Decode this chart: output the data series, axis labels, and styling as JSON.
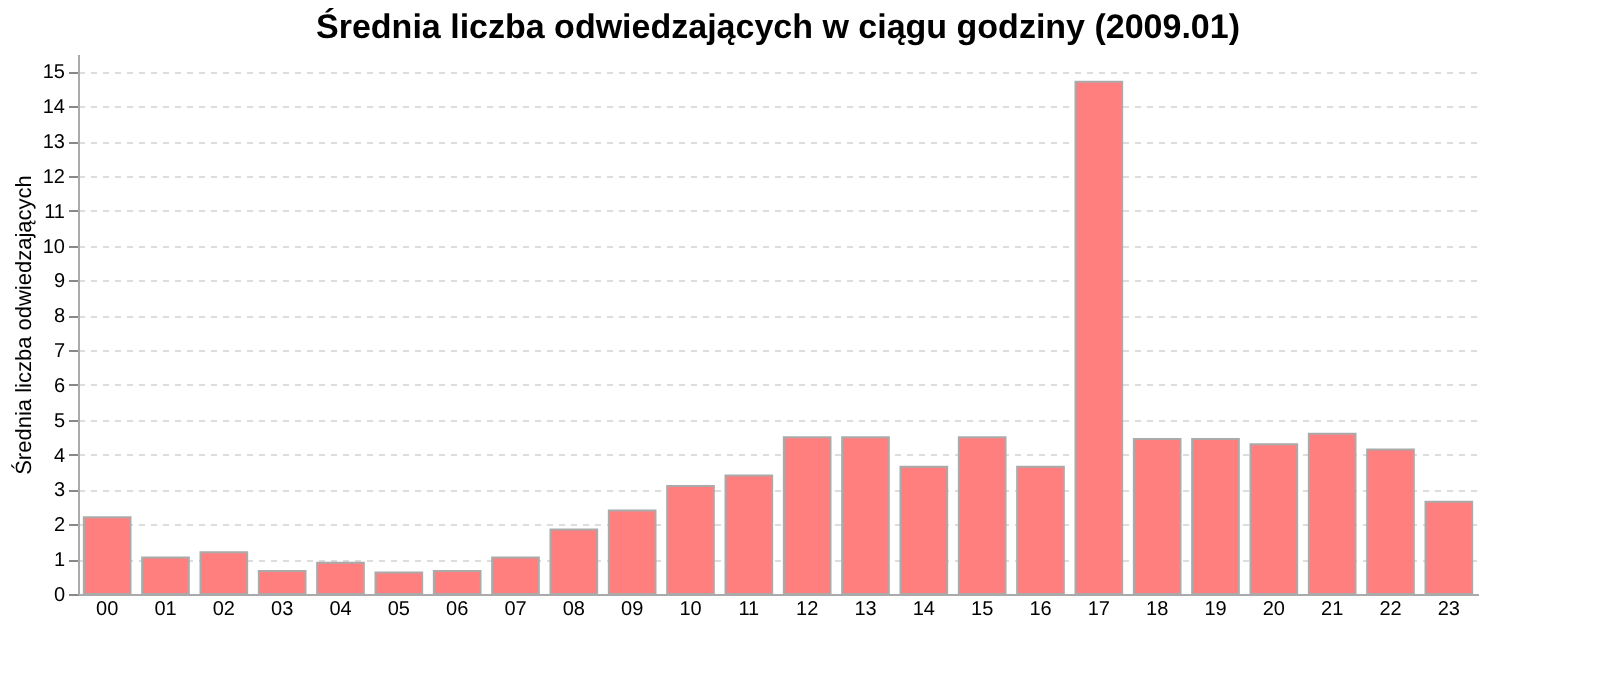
{
  "chart_data": {
    "type": "bar",
    "title": "Średnia liczba odwiedzających w ciągu godziny (2009.01)",
    "ylabel": "Średnia liczba odwiedzających",
    "categories": [
      "00",
      "01",
      "02",
      "03",
      "04",
      "05",
      "06",
      "07",
      "08",
      "09",
      "10",
      "11",
      "12",
      "13",
      "14",
      "15",
      "16",
      "17",
      "18",
      "19",
      "20",
      "21",
      "22",
      "23"
    ],
    "values": [
      2.2,
      1.05,
      1.2,
      0.66,
      0.9,
      0.62,
      0.66,
      1.05,
      1.85,
      2.4,
      3.1,
      3.4,
      4.5,
      4.5,
      3.65,
      4.5,
      3.65,
      14.7,
      4.45,
      4.45,
      4.3,
      4.6,
      4.15,
      2.65
    ],
    "color": "#ff7f7f",
    "ylim": [
      0,
      15.5
    ],
    "yticks": [
      0,
      1,
      2,
      3,
      4,
      5,
      6,
      7,
      8,
      9,
      10,
      11,
      12,
      13,
      14,
      15
    ],
    "grid": "y"
  }
}
